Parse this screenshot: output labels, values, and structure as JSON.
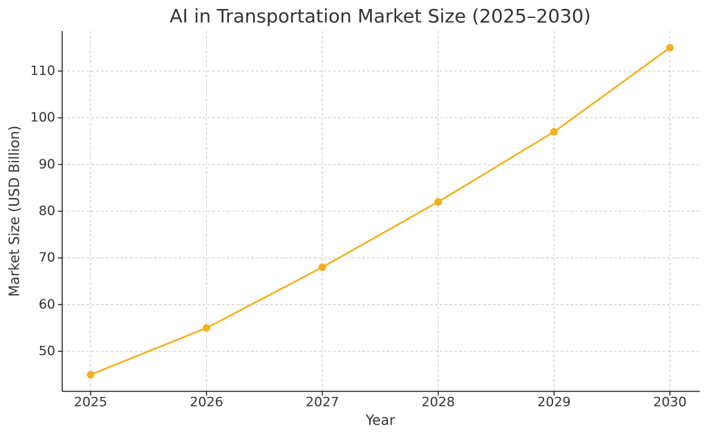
{
  "chart_data": {
    "type": "line",
    "title": "AI in Transportation Market Size (2025–2030)",
    "x_label": "Year",
    "y_label": "Market Size (USD Billion)",
    "x": [
      2025,
      2026,
      2027,
      2028,
      2029,
      2030
    ],
    "values": [
      45,
      55,
      68,
      82,
      97,
      115
    ],
    "color": "#f2b01e",
    "xlim": [
      2024.755,
      2030.257
    ],
    "xticks": [
      2025,
      2026,
      2027,
      2028,
      2029,
      2030
    ],
    "ylim": [
      41.43,
      118.57
    ],
    "yticks": [
      50,
      60,
      70,
      80,
      90,
      100,
      110
    ],
    "grid": true
  }
}
